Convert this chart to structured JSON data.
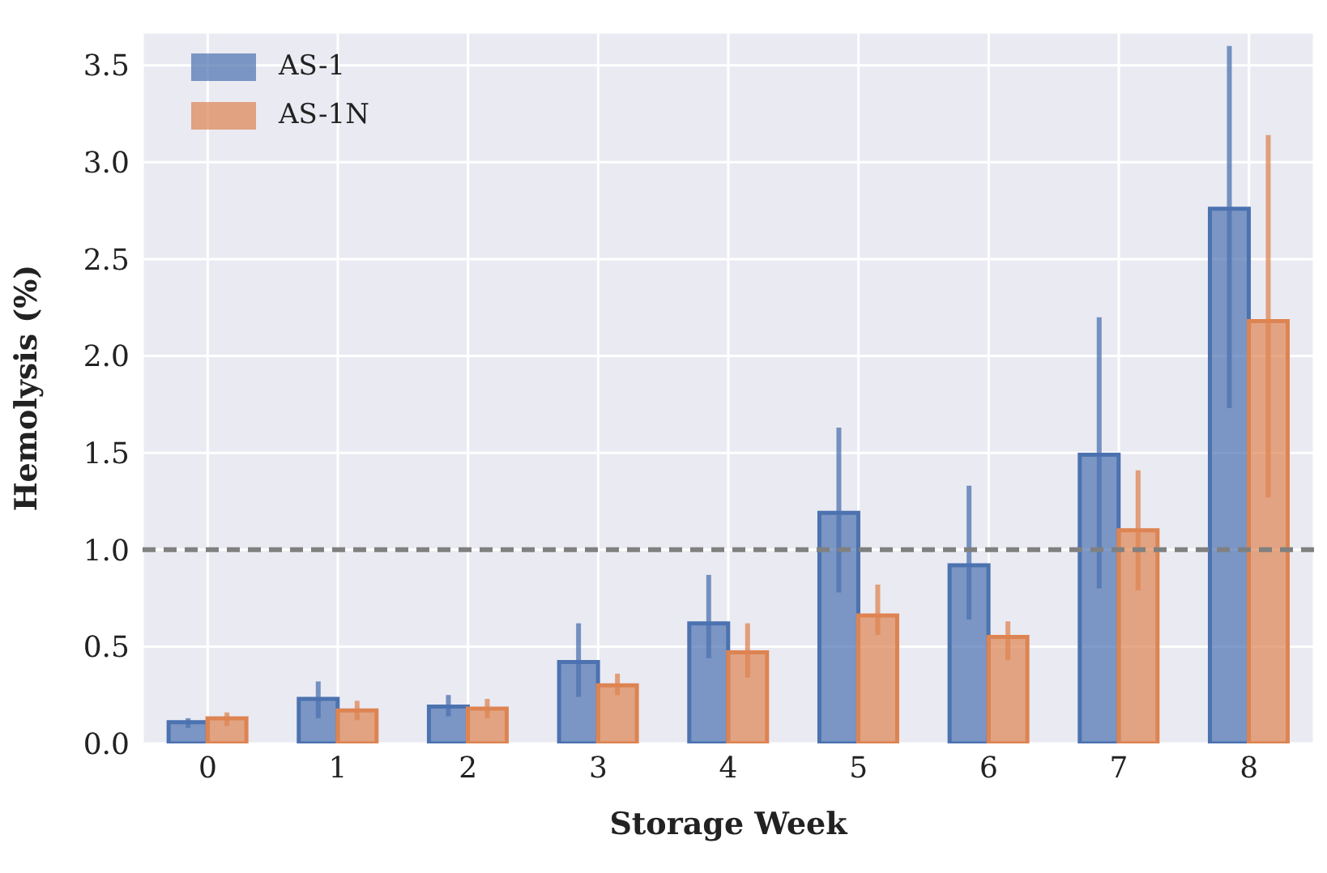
{
  "chart_data": {
    "type": "bar",
    "xlabel": "Storage Week",
    "ylabel": "Hemolysis (%)",
    "categories": [
      "0",
      "1",
      "2",
      "3",
      "4",
      "5",
      "6",
      "7",
      "8"
    ],
    "series": [
      {
        "name": "AS-1",
        "color": "#4c72b0",
        "values": [
          0.11,
          0.23,
          0.19,
          0.42,
          0.62,
          1.19,
          0.92,
          1.49,
          2.76
        ],
        "errors": [
          [
            0.08,
            0.13
          ],
          [
            0.13,
            0.32
          ],
          [
            0.14,
            0.25
          ],
          [
            0.24,
            0.62
          ],
          [
            0.44,
            0.87
          ],
          [
            0.78,
            1.63
          ],
          [
            0.64,
            1.33
          ],
          [
            0.8,
            2.2
          ],
          [
            1.73,
            3.6
          ]
        ]
      },
      {
        "name": "AS-1N",
        "color": "#dd8452",
        "values": [
          0.13,
          0.17,
          0.18,
          0.3,
          0.47,
          0.66,
          0.55,
          1.1,
          2.18
        ],
        "errors": [
          [
            0.09,
            0.16
          ],
          [
            0.12,
            0.22
          ],
          [
            0.13,
            0.23
          ],
          [
            0.25,
            0.36
          ],
          [
            0.34,
            0.62
          ],
          [
            0.56,
            0.82
          ],
          [
            0.43,
            0.63
          ],
          [
            0.79,
            1.41
          ],
          [
            1.27,
            3.14
          ]
        ]
      }
    ],
    "ylim": [
      0,
      3.67
    ],
    "yticks": [
      {
        "value": 0,
        "label": "0.0"
      },
      {
        "value": 0.5,
        "label": "0.5"
      },
      {
        "value": 1,
        "label": "1.0"
      },
      {
        "value": 1.5,
        "label": "1.5"
      },
      {
        "value": 2,
        "label": "2.0"
      },
      {
        "value": 2.5,
        "label": "2.5"
      },
      {
        "value": 3,
        "label": "3.0"
      },
      {
        "value": 3.5,
        "label": "3.5"
      }
    ],
    "ref_lines": [
      {
        "axis": "y",
        "value": 1,
        "color": "#808080",
        "line_style": "dashed"
      }
    ],
    "grid": true,
    "legend": "top left"
  }
}
